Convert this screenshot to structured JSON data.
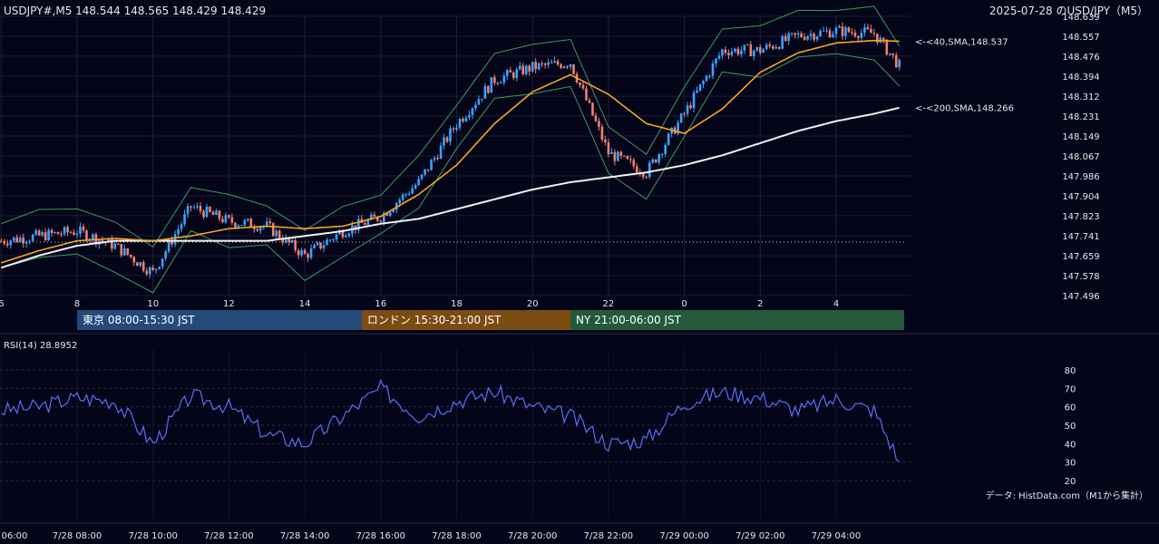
{
  "header": {
    "left": "USDJPY#,M5 148.544 148.565 148.429 148.429",
    "right": "2025-07-28 のUSD/JPY（M5）"
  },
  "price_axis": [
    "148.639",
    "148.557",
    "148.476",
    "148.394",
    "148.312",
    "148.231",
    "148.149",
    "148.067",
    "147.986",
    "147.904",
    "147.823",
    "147.741",
    "147.659",
    "147.578",
    "147.496"
  ],
  "time_axis_top": [
    "6",
    "8",
    "10",
    "12",
    "14",
    "16",
    "18",
    "20",
    "22",
    "0",
    "2",
    "4"
  ],
  "sessions": [
    {
      "label": "東京 08:00-15:30 JST",
      "color": "#244a7a"
    },
    {
      "label": "ロンドン 15:30-21:00 JST",
      "color": "#7a4c12"
    },
    {
      "label": "NY 21:00-06:00 JST",
      "color": "#245a3a"
    }
  ],
  "sma_labels": [
    {
      "text": "<-<40,SMA,148.537",
      "color": "#f5a623"
    },
    {
      "text": "<-<200,SMA,148.266",
      "color": "#e6e6e6"
    }
  ],
  "rsi": {
    "title": "RSI(14) 28.8952",
    "axis": [
      "80",
      "70",
      "60",
      "50",
      "40",
      "30",
      "20"
    ],
    "color": "#5b6ef5"
  },
  "source": "データ: HistData.com（M1から集計）",
  "time_axis_bottom": [
    "06:00",
    "7/28 08:00",
    "7/28 10:00",
    "7/28 12:00",
    "7/28 14:00",
    "7/28 16:00",
    "7/28 18:00",
    "7/28 20:00",
    "7/28 22:00",
    "7/29 00:00",
    "7/29 02:00",
    "7/29 04:00"
  ],
  "chart_data": {
    "type": "line",
    "title": "USDJPY#,M5",
    "xlabel": "",
    "ylabel": "",
    "ylim": [
      147.496,
      148.639
    ],
    "x": [
      "06:00",
      "07:00",
      "08:00",
      "09:00",
      "10:00",
      "11:00",
      "12:00",
      "13:00",
      "14:00",
      "15:00",
      "16:00",
      "17:00",
      "18:00",
      "19:00",
      "20:00",
      "21:00",
      "22:00",
      "23:00",
      "00:00",
      "01:00",
      "02:00",
      "03:00",
      "04:00",
      "05:00",
      "05:40"
    ],
    "series": [
      {
        "name": "",
        "values": [
          147.72,
          147.74,
          147.76,
          147.7,
          147.59,
          147.86,
          147.8,
          147.78,
          147.66,
          147.76,
          147.82,
          147.96,
          148.2,
          148.38,
          148.43,
          148.45,
          148.08,
          148.0,
          148.24,
          148.5,
          148.5,
          148.56,
          148.58,
          148.57,
          148.43
        ]
      },
      {
        "name": "40 SMA",
        "values": [
          147.63,
          147.68,
          147.72,
          147.73,
          147.72,
          147.74,
          147.77,
          147.78,
          147.77,
          147.78,
          147.82,
          147.91,
          148.03,
          148.2,
          148.33,
          148.4,
          148.32,
          148.2,
          148.16,
          148.26,
          148.41,
          148.49,
          148.53,
          148.54,
          148.537
        ]
      },
      {
        "name": "200 SMA",
        "values": [
          147.61,
          147.66,
          147.7,
          147.72,
          147.72,
          147.72,
          147.72,
          147.72,
          147.74,
          147.76,
          147.79,
          147.81,
          147.85,
          147.89,
          147.93,
          147.96,
          147.98,
          148.0,
          148.03,
          148.07,
          148.12,
          148.17,
          148.21,
          148.24,
          148.266
        ]
      },
      {
        "name": "RSI(14)",
        "values": [
          58,
          60,
          65,
          63,
          40,
          66,
          60,
          45,
          40,
          55,
          70,
          55,
          63,
          68,
          60,
          55,
          40,
          42,
          62,
          68,
          65,
          58,
          64,
          58,
          28.9
        ]
      }
    ]
  }
}
